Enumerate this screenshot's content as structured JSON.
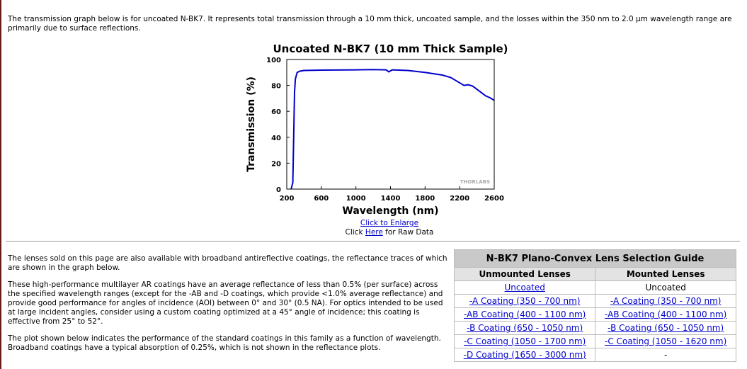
{
  "intro": "The transmission graph below is for uncoated N-BK7. It represents total transmission through a 10 mm thick, uncoated sample, and the losses within the 350 nm to 2.0 µm wavelength range are primarily due to surface reflections.",
  "chart_data": {
    "type": "line",
    "title": "Uncoated N-BK7 (10 mm Thick Sample)",
    "x_label": "Wavelength (nm)",
    "y_label": "Transmission (%)",
    "watermark": "THORLABS",
    "x": [
      250,
      270,
      280,
      290,
      300,
      320,
      350,
      400,
      600,
      1000,
      1200,
      1350,
      1380,
      1420,
      1600,
      1800,
      2000,
      2100,
      2200,
      2250,
      2300,
      2350,
      2400,
      2450,
      2500,
      2550,
      2600
    ],
    "series": [
      {
        "name": "Transmission",
        "color": "#0000cc",
        "values": [
          0,
          5,
          40,
          75,
          85,
          90,
          91,
          91.5,
          91.8,
          92,
          92.2,
          92,
          90.5,
          92,
          91.5,
          90,
          88,
          86,
          82,
          80,
          80.5,
          79.5,
          77,
          74.5,
          72,
          70.5,
          68.5
        ]
      }
    ],
    "xlim": [
      200,
      2600
    ],
    "xticks": [
      200,
      600,
      1000,
      1400,
      1800,
      2200,
      2600
    ],
    "ylim": [
      0,
      100
    ],
    "yticks": [
      0,
      20,
      40,
      60,
      80,
      100
    ]
  },
  "links": {
    "enlarge": "Click to Enlarge",
    "raw_prefix": "Click",
    "raw_link": "Here",
    "raw_suffix": "for Raw Data"
  },
  "paragraphs": [
    "The lenses sold on this page are also available with broadband antireflective coatings, the reflectance traces of which are shown in the graph below.",
    "These high-performance multilayer AR coatings have an average reflectance of less than 0.5% (per surface) across the specified wavelength ranges (except for the -AB and -D coatings, which provide <1.0% average reflectance) and provide good performance for angles of incidence (AOI) between 0° and 30° (0.5 NA). For optics intended to be used at large incident angles, consider using a custom coating optimized at a 45° angle of incidence; this coating is effective from 25° to 52°.",
    "The plot shown below indicates the performance of the standard coatings in this family as a function of wavelength. Broadband coatings have a typical absorption of 0.25%, which is not shown in the reflectance plots."
  ],
  "table": {
    "title": "N-BK7 Plano-Convex Lens Selection Guide",
    "headers": [
      "Unmounted Lenses",
      "Mounted Lenses"
    ],
    "rows": [
      [
        {
          "text": "Uncoated",
          "link": true
        },
        {
          "text": "Uncoated",
          "link": false
        }
      ],
      [
        {
          "text": "-A Coating (350 - 700 nm)",
          "link": true
        },
        {
          "text": "-A Coating (350 - 700 nm)",
          "link": true
        }
      ],
      [
        {
          "text": "-AB Coating (400 - 1100 nm)",
          "link": true
        },
        {
          "text": "-AB Coating (400 - 1100 nm)",
          "link": true
        }
      ],
      [
        {
          "text": "-B Coating (650 - 1050 nm)",
          "link": true
        },
        {
          "text": "-B Coating (650 - 1050 nm)",
          "link": true
        }
      ],
      [
        {
          "text": "-C Coating (1050 - 1700 nm)",
          "link": true
        },
        {
          "text": "-C Coating (1050 - 1620 nm)",
          "link": true
        }
      ],
      [
        {
          "text": "-D Coating (1650 - 3000 nm)",
          "link": true
        },
        {
          "text": "-",
          "link": false
        }
      ]
    ]
  }
}
